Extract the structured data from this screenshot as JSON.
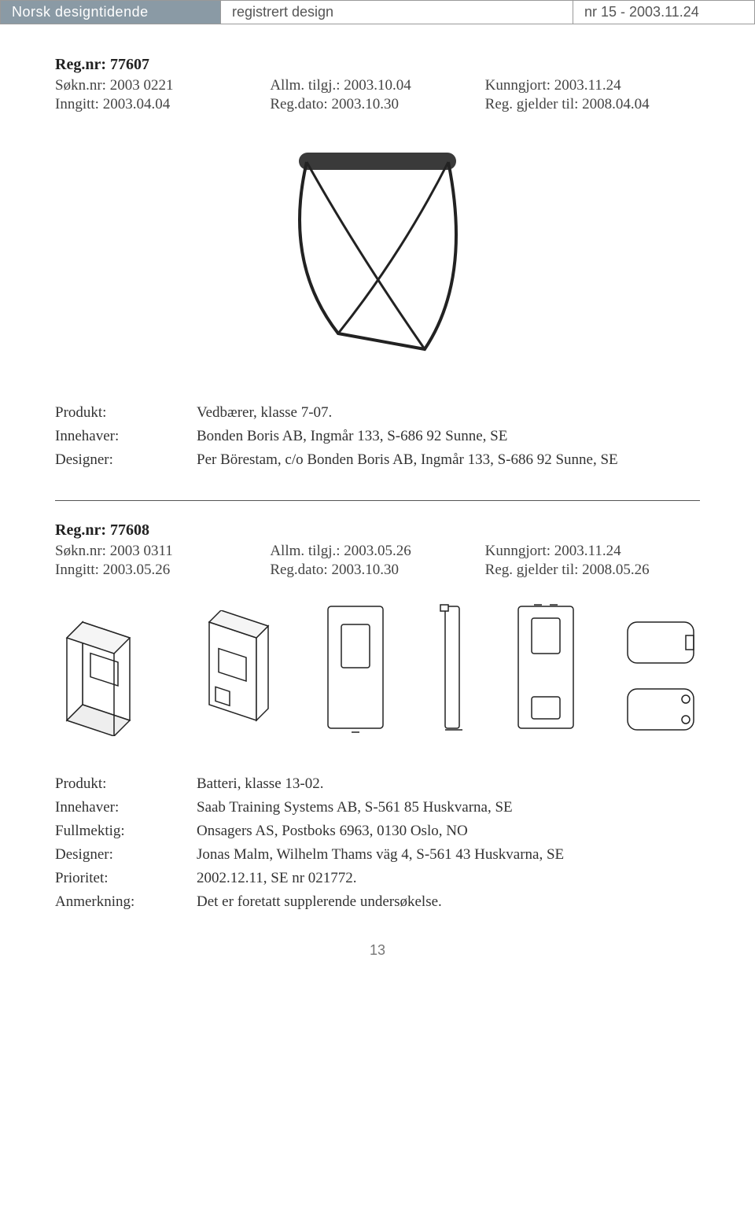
{
  "header": {
    "left": "Norsk designtidende",
    "middle": "registrert design",
    "right": "nr 15 - 2003.11.24"
  },
  "record1": {
    "regnr_label": "Reg.nr:",
    "regnr": "77607",
    "sokn_label": "Søkn.nr:",
    "sokn": "2003 0221",
    "inngitt_label": "Inngitt:",
    "inngitt": "2003.04.04",
    "allm_label": "Allm. tilgj.:",
    "allm": "2003.10.04",
    "regdato_label": "Reg.dato:",
    "regdato": "2003.10.30",
    "kunngjort_label": "Kunngjort:",
    "kunngjort": "2003.11.24",
    "gjelder_label": "Reg. gjelder til:",
    "gjelder": "2008.04.04",
    "info": [
      {
        "label": "Produkt:",
        "value": "Vedbærer, klasse 7-07."
      },
      {
        "label": "Innehaver:",
        "value": "Bonden Boris AB, Ingmår 133, S-686 92 Sunne, SE"
      },
      {
        "label": "Designer:",
        "value": "Per Börestam, c/o Bonden Boris AB, Ingmår 133, S-686 92 Sunne, SE"
      }
    ]
  },
  "record2": {
    "regnr_label": "Reg.nr:",
    "regnr": "77608",
    "sokn_label": "Søkn.nr:",
    "sokn": "2003 0311",
    "inngitt_label": "Inngitt:",
    "inngitt": "2003.05.26",
    "allm_label": "Allm. tilgj.:",
    "allm": "2003.05.26",
    "regdato_label": "Reg.dato:",
    "regdato": "2003.10.30",
    "kunngjort_label": "Kunngjort:",
    "kunngjort": "2003.11.24",
    "gjelder_label": "Reg. gjelder til:",
    "gjelder": "2008.05.26",
    "info": [
      {
        "label": "Produkt:",
        "value": "Batteri, klasse 13-02."
      },
      {
        "label": "Innehaver:",
        "value": "Saab Training Systems AB, S-561 85 Huskvarna, SE"
      },
      {
        "label": "Fullmektig:",
        "value": "Onsagers AS, Postboks 6963, 0130 Oslo, NO"
      },
      {
        "label": "Designer:",
        "value": "Jonas Malm, Wilhelm Thams väg 4, S-561 43 Huskvarna, SE"
      },
      {
        "label": "Prioritet:",
        "value": "2002.12.11, SE nr 021772."
      },
      {
        "label": "Anmerkning:",
        "value": "Det er foretatt supplerende undersøkelse."
      }
    ]
  },
  "page_number": "13",
  "colors": {
    "header_bg": "#8a9aa5",
    "header_text": "#ffffff",
    "body_text": "#333333",
    "muted_text": "#555555",
    "line": "#222222"
  }
}
